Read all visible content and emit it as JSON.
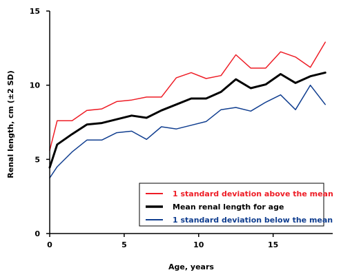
{
  "chart_data": {
    "type": "line",
    "xlabel": "Age, years",
    "ylabel": "Renal length, cm (±2 SD)",
    "xlim": [
      0,
      19
    ],
    "ylim": [
      0,
      15
    ],
    "xticks": [
      "0",
      "5",
      "10",
      "15"
    ],
    "yticks": [
      "0",
      "5",
      "10",
      "15"
    ],
    "grid": false,
    "legend_position": "bottom-right",
    "x": [
      0,
      0.5,
      1.5,
      2.5,
      3.5,
      4.5,
      5.5,
      6.5,
      7.5,
      8.5,
      9.5,
      10.5,
      11.5,
      12.5,
      13.5,
      14.5,
      15.5,
      16.5,
      17.5,
      18.5
    ],
    "series": [
      {
        "name": "1 standard deviation above the mean",
        "color": "#ee1c25",
        "width": 1.5,
        "values": [
          5.6,
          7.6,
          7.6,
          8.3,
          8.4,
          8.9,
          9.0,
          9.2,
          9.2,
          10.5,
          10.85,
          10.45,
          10.65,
          12.05,
          11.15,
          11.15,
          12.25,
          11.9,
          11.2,
          12.9
        ]
      },
      {
        "name": "Mean renal length for age",
        "color": "#000000",
        "width": 3,
        "values": [
          4.45,
          6.0,
          6.7,
          7.35,
          7.45,
          7.7,
          7.95,
          7.8,
          8.3,
          8.7,
          9.1,
          9.1,
          9.55,
          10.4,
          9.8,
          10.05,
          10.75,
          10.15,
          10.6,
          10.85
        ]
      },
      {
        "name": "1 standard deviation below the mean",
        "color": "#0f3d8f",
        "width": 1.5,
        "values": [
          3.75,
          4.5,
          5.5,
          6.3,
          6.3,
          6.8,
          6.9,
          6.35,
          7.2,
          7.05,
          7.3,
          7.55,
          8.35,
          8.5,
          8.25,
          8.85,
          9.35,
          8.35,
          10.0,
          8.7
        ]
      }
    ]
  }
}
